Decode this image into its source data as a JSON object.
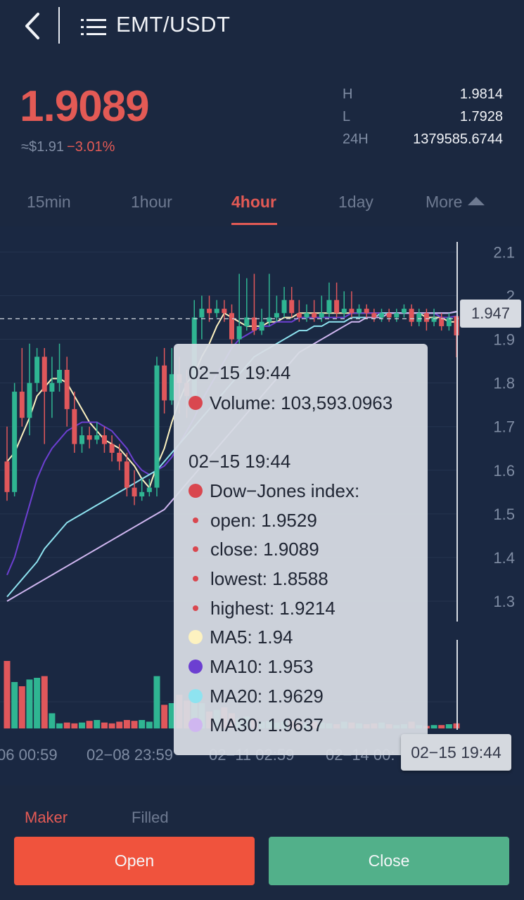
{
  "header": {
    "pair": "EMT/USDT"
  },
  "ticker": {
    "price": "1.9089",
    "usd": "≈$1.91",
    "change": "−3.01%",
    "stats": [
      {
        "label": "H",
        "value": "1.9814"
      },
      {
        "label": "L",
        "value": "1.7928"
      },
      {
        "label": "24H",
        "value": "1379585.6744"
      }
    ]
  },
  "tabs": [
    "15min",
    "1hour",
    "4hour",
    "1day",
    "More"
  ],
  "active_tab": "4hour",
  "chart_data": {
    "type": "candlestick",
    "y_axis_ticks": [
      "2.1",
      "2",
      "1.9",
      "1.8",
      "1.7",
      "1.6",
      "1.5",
      "1.4",
      "1.3"
    ],
    "x_axis_ticks": [
      "06 00:59",
      "02−08 23:59",
      "02−11 02:59",
      "02−14 00:",
      "02−15 19:44"
    ],
    "current_price_tag": "1.947",
    "ylim": [
      1.25,
      2.12
    ],
    "candles": [
      [
        1.62,
        1.55,
        1.7,
        1.53
      ],
      [
        1.55,
        1.78,
        1.8,
        1.54
      ],
      [
        1.78,
        1.72,
        1.88,
        1.7
      ],
      [
        1.72,
        1.8,
        1.89,
        1.68
      ],
      [
        1.8,
        1.86,
        1.88,
        1.78
      ],
      [
        1.86,
        1.78,
        1.88,
        1.66
      ],
      [
        1.78,
        1.8,
        1.86,
        1.72
      ],
      [
        1.8,
        1.83,
        1.89,
        1.78
      ],
      [
        1.83,
        1.74,
        1.86,
        1.7
      ],
      [
        1.74,
        1.66,
        1.78,
        1.64
      ],
      [
        1.66,
        1.68,
        1.7,
        1.64
      ],
      [
        1.68,
        1.67,
        1.7,
        1.65
      ],
      [
        1.67,
        1.68,
        1.71,
        1.66
      ],
      [
        1.68,
        1.66,
        1.7,
        1.64
      ],
      [
        1.66,
        1.64,
        1.68,
        1.62
      ],
      [
        1.64,
        1.62,
        1.66,
        1.6
      ],
      [
        1.62,
        1.56,
        1.64,
        1.54
      ],
      [
        1.56,
        1.54,
        1.6,
        1.52
      ],
      [
        1.54,
        1.55,
        1.58,
        1.53
      ],
      [
        1.55,
        1.56,
        1.58,
        1.54
      ],
      [
        1.56,
        1.84,
        1.86,
        1.54
      ],
      [
        1.84,
        1.76,
        1.88,
        1.73
      ],
      [
        1.76,
        1.82,
        1.88,
        1.75
      ],
      [
        1.82,
        1.8,
        1.86,
        1.73
      ],
      [
        1.8,
        1.77,
        1.83,
        1.72
      ],
      [
        1.77,
        1.95,
        1.99,
        1.76
      ],
      [
        1.95,
        1.97,
        2.0,
        1.9
      ],
      [
        1.97,
        1.96,
        2.0,
        1.94
      ],
      [
        1.96,
        1.97,
        1.99,
        1.95
      ],
      [
        1.97,
        1.96,
        1.99,
        1.94
      ],
      [
        1.96,
        1.9,
        1.98,
        1.89
      ],
      [
        1.9,
        1.93,
        2.05,
        1.89
      ],
      [
        1.93,
        1.95,
        2.04,
        1.92
      ],
      [
        1.95,
        1.92,
        2.05,
        1.91
      ],
      [
        1.92,
        1.94,
        1.97,
        1.91
      ],
      [
        1.94,
        1.95,
        2.05,
        1.93
      ],
      [
        1.95,
        1.96,
        2.0,
        1.94
      ],
      [
        1.96,
        1.99,
        2.02,
        1.95
      ],
      [
        1.99,
        1.96,
        2.02,
        1.95
      ],
      [
        1.96,
        1.95,
        1.99,
        1.94
      ],
      [
        1.95,
        1.96,
        1.98,
        1.94
      ],
      [
        1.96,
        1.95,
        1.99,
        1.94
      ],
      [
        1.95,
        1.96,
        2.0,
        1.94
      ],
      [
        1.96,
        1.99,
        2.03,
        1.95
      ],
      [
        1.99,
        1.96,
        2.03,
        1.95
      ],
      [
        1.96,
        1.97,
        2.01,
        1.95
      ],
      [
        1.97,
        1.96,
        2.01,
        1.95
      ],
      [
        1.96,
        1.97,
        1.98,
        1.95
      ],
      [
        1.97,
        1.96,
        1.98,
        1.95
      ],
      [
        1.96,
        1.95,
        1.97,
        1.94
      ],
      [
        1.95,
        1.96,
        1.97,
        1.94
      ],
      [
        1.96,
        1.95,
        1.97,
        1.94
      ],
      [
        1.95,
        1.96,
        1.97,
        1.94
      ],
      [
        1.96,
        1.97,
        1.98,
        1.95
      ],
      [
        1.97,
        1.94,
        1.98,
        1.93
      ],
      [
        1.94,
        1.96,
        1.97,
        1.93
      ],
      [
        1.96,
        1.94,
        1.97,
        1.92
      ],
      [
        1.94,
        1.95,
        1.97,
        1.93
      ],
      [
        1.95,
        1.93,
        1.96,
        1.92
      ],
      [
        1.93,
        1.95,
        1.96,
        1.92
      ],
      [
        1.9529,
        1.9089,
        1.9214,
        1.8588
      ]
    ],
    "volumes": [
      0.8,
      0.55,
      0.5,
      0.58,
      0.6,
      0.62,
      0.18,
      0.06,
      0.07,
      0.06,
      0.07,
      0.09,
      0.1,
      0.07,
      0.06,
      0.08,
      0.1,
      0.09,
      0.1,
      0.08,
      0.62,
      0.28,
      0.3,
      0.4,
      0.33,
      0.38,
      0.3,
      0.2,
      0.22,
      0.25,
      0.18,
      0.12,
      0.14,
      0.1,
      0.08,
      0.09,
      0.07,
      0.08,
      0.09,
      0.07,
      0.06,
      0.08,
      0.07,
      0.06,
      0.05,
      0.08,
      0.07,
      0.06,
      0.05,
      0.06,
      0.07,
      0.05,
      0.04,
      0.05,
      0.08,
      0.04,
      0.03,
      0.04,
      0.04,
      0.05,
      0.06
    ],
    "ma": [
      {
        "name": "MA5",
        "color": "#fdf2c0",
        "values": [
          1.62,
          1.64,
          1.68,
          1.72,
          1.77,
          1.79,
          1.81,
          1.81,
          1.8,
          1.77,
          1.74,
          1.71,
          1.69,
          1.67,
          1.66,
          1.65,
          1.63,
          1.61,
          1.58,
          1.56,
          1.61,
          1.65,
          1.71,
          1.76,
          1.8,
          1.82,
          1.86,
          1.89,
          1.93,
          1.96,
          1.95,
          1.94,
          1.93,
          1.93,
          1.93,
          1.94,
          1.94,
          1.95,
          1.95,
          1.96,
          1.96,
          1.96,
          1.96,
          1.96,
          1.96,
          1.96,
          1.96,
          1.96,
          1.96,
          1.96,
          1.96,
          1.96,
          1.96,
          1.96,
          1.96,
          1.96,
          1.95,
          1.95,
          1.95,
          1.94,
          1.94
        ]
      },
      {
        "name": "MA10",
        "color": "#6c3fd1",
        "values": [
          1.36,
          1.4,
          1.46,
          1.52,
          1.58,
          1.62,
          1.65,
          1.67,
          1.69,
          1.7,
          1.71,
          1.71,
          1.71,
          1.7,
          1.69,
          1.67,
          1.65,
          1.62,
          1.6,
          1.59,
          1.6,
          1.61,
          1.63,
          1.66,
          1.69,
          1.72,
          1.76,
          1.79,
          1.82,
          1.85,
          1.88,
          1.9,
          1.91,
          1.92,
          1.93,
          1.93,
          1.94,
          1.94,
          1.94,
          1.95,
          1.95,
          1.95,
          1.95,
          1.95,
          1.95,
          1.95,
          1.96,
          1.96,
          1.96,
          1.96,
          1.96,
          1.96,
          1.96,
          1.96,
          1.96,
          1.96,
          1.96,
          1.96,
          1.95,
          1.95,
          1.953
        ]
      },
      {
        "name": "MA20",
        "color": "#8ee3f0",
        "values": [
          1.31,
          1.33,
          1.35,
          1.37,
          1.39,
          1.42,
          1.44,
          1.46,
          1.48,
          1.49,
          1.5,
          1.51,
          1.52,
          1.53,
          1.54,
          1.55,
          1.56,
          1.57,
          1.58,
          1.59,
          1.6,
          1.62,
          1.64,
          1.66,
          1.68,
          1.7,
          1.72,
          1.74,
          1.76,
          1.78,
          1.8,
          1.82,
          1.84,
          1.86,
          1.87,
          1.88,
          1.89,
          1.9,
          1.91,
          1.92,
          1.92,
          1.93,
          1.93,
          1.94,
          1.94,
          1.94,
          1.95,
          1.95,
          1.95,
          1.95,
          1.96,
          1.96,
          1.96,
          1.96,
          1.96,
          1.96,
          1.96,
          1.96,
          1.96,
          1.96,
          1.9629
        ]
      },
      {
        "name": "MA30",
        "color": "#cfb6f0",
        "values": [
          1.3,
          1.31,
          1.32,
          1.33,
          1.34,
          1.35,
          1.36,
          1.37,
          1.38,
          1.39,
          1.4,
          1.41,
          1.42,
          1.43,
          1.44,
          1.45,
          1.46,
          1.47,
          1.48,
          1.49,
          1.5,
          1.51,
          1.53,
          1.55,
          1.57,
          1.59,
          1.61,
          1.63,
          1.65,
          1.67,
          1.69,
          1.71,
          1.73,
          1.75,
          1.77,
          1.79,
          1.81,
          1.83,
          1.85,
          1.87,
          1.88,
          1.89,
          1.9,
          1.91,
          1.92,
          1.93,
          1.94,
          1.94,
          1.95,
          1.95,
          1.95,
          1.96,
          1.96,
          1.96,
          1.96,
          1.96,
          1.96,
          1.96,
          1.96,
          1.96,
          1.9637
        ]
      }
    ]
  },
  "tooltip": {
    "time": "02−15 19:44",
    "volume_label": "Volume: 103,593.0963",
    "time2": "02−15 19:44",
    "index_label": "Dow−Jones index:",
    "open": "open: 1.9529",
    "close": "close: 1.9089",
    "lowest": "lowest: 1.8588",
    "highest": "highest: 1.9214",
    "ma5": "MA5: 1.94",
    "ma10": "MA10: 1.953",
    "ma20": "MA20: 1.9629",
    "ma30": "MA30: 1.9637"
  },
  "orders": {
    "maker": "Maker",
    "filled": "Filled"
  },
  "actions": {
    "open": "Open",
    "close": "Close"
  },
  "colors": {
    "up": "#2fb592",
    "down": "#e0575b",
    "accent": "#e35a55",
    "bg": "#1b2840"
  }
}
